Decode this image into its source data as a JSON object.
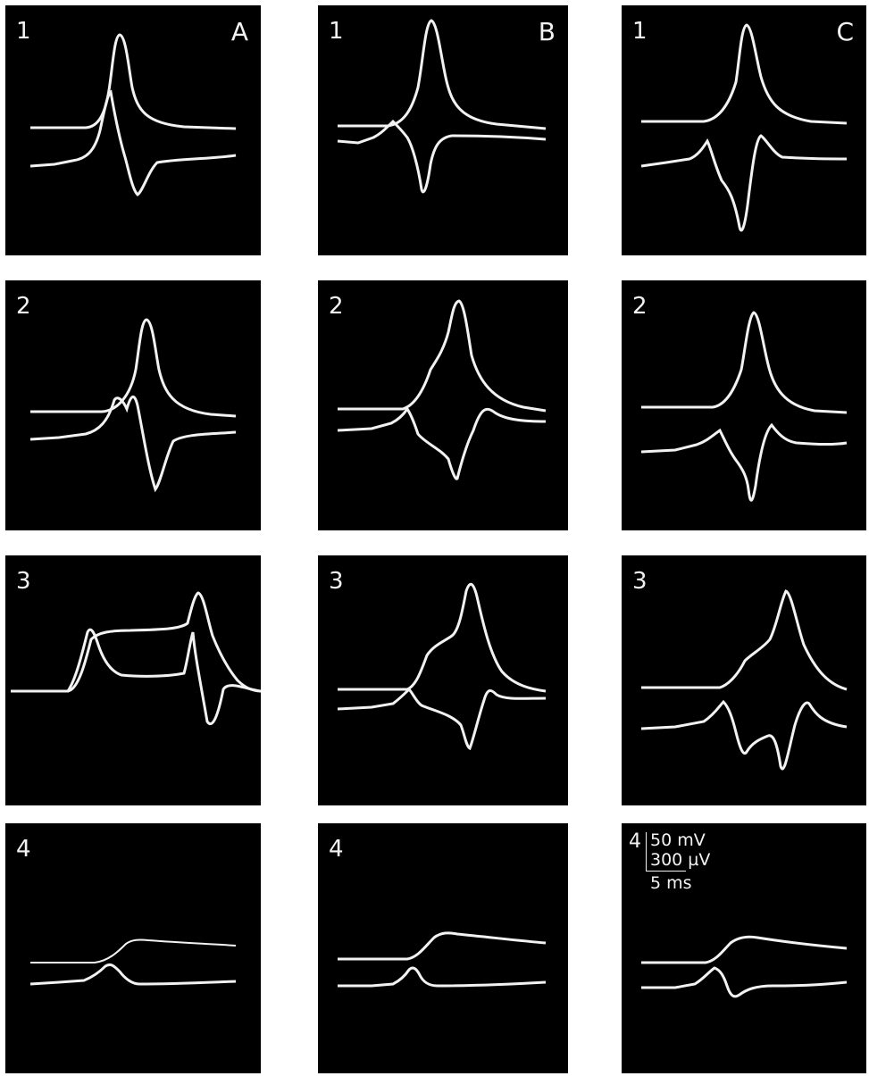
{
  "columns": [
    {
      "id": "A",
      "label": "A"
    },
    {
      "id": "B",
      "label": "B"
    },
    {
      "id": "C",
      "label": "C"
    }
  ],
  "rows": [
    {
      "id": "1",
      "label": "1"
    },
    {
      "id": "2",
      "label": "2"
    },
    {
      "id": "3",
      "label": "3"
    },
    {
      "id": "4",
      "label": "4"
    }
  ],
  "scale_bar": {
    "row_label": "4",
    "voltage_intracellular": "50 mV",
    "voltage_extracellular": "300 µV",
    "time": "5 ms"
  },
  "colors": {
    "panel_background": "#000000",
    "trace": "#f2f2f2",
    "page": "#ffffff"
  }
}
